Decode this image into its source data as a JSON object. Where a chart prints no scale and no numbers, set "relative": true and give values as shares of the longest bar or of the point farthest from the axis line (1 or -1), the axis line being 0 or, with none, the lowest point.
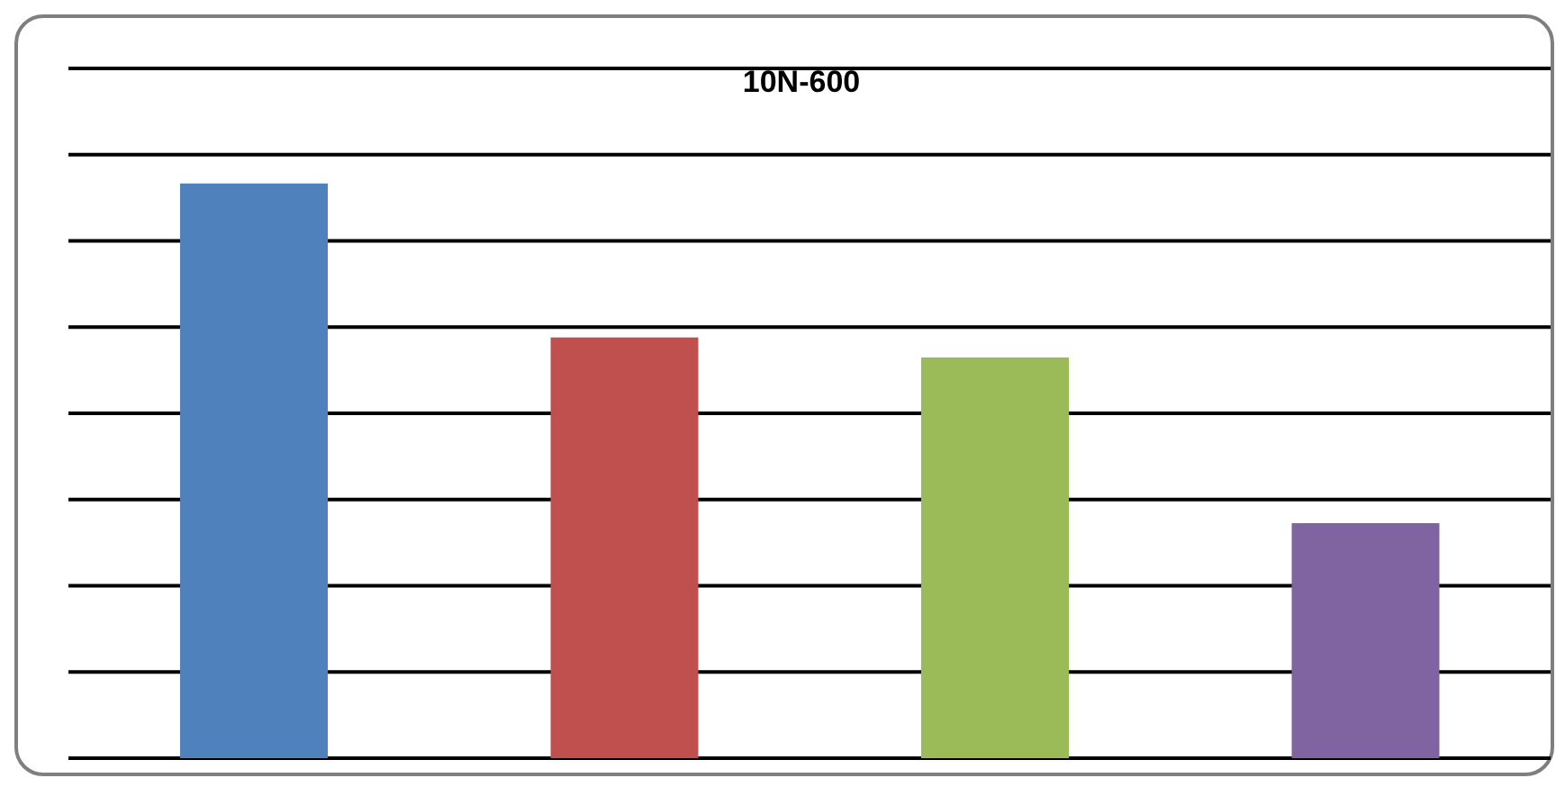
{
  "chart_data": {
    "type": "bar",
    "title": "10N-600",
    "relative": true,
    "categories": [
      null,
      null,
      null,
      null
    ],
    "values": [
      1,
      0.732,
      0.697,
      0.409
    ],
    "colors": [
      "#4f81bd",
      "#c0504d",
      "#9bbb59",
      "#8064a2"
    ],
    "grid": "y"
  }
}
